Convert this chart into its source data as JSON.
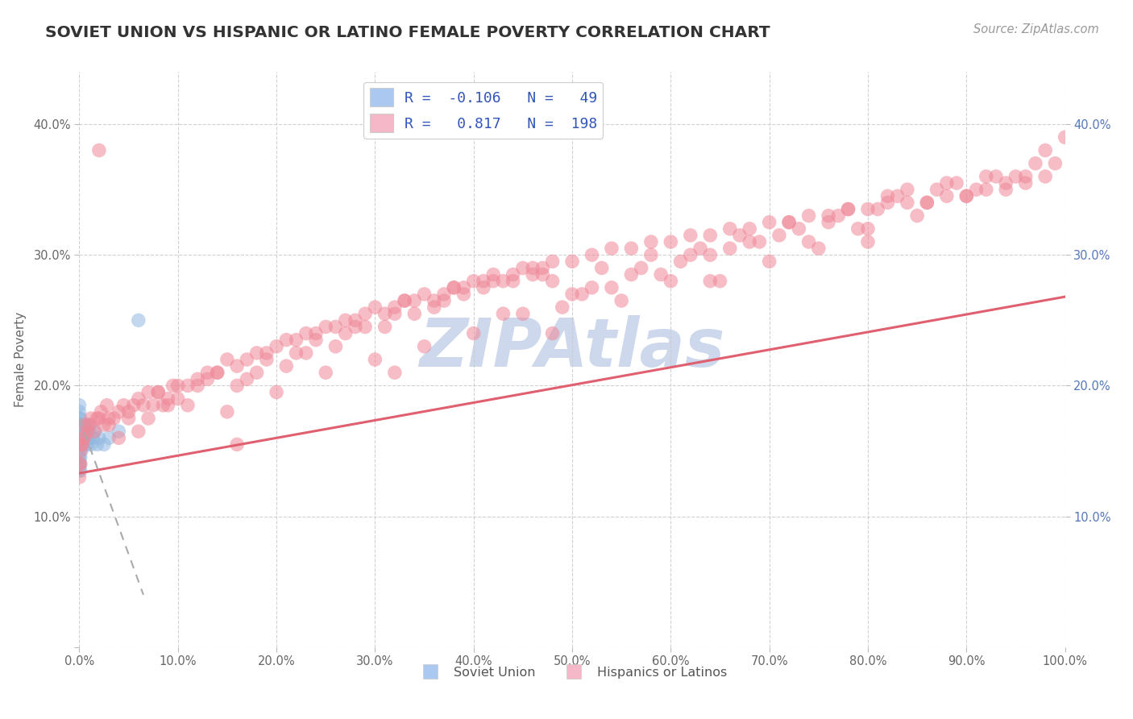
{
  "title": "SOVIET UNION VS HISPANIC OR LATINO FEMALE POVERTY CORRELATION CHART",
  "source": "Source: ZipAtlas.com",
  "ylabel": "Female Poverty",
  "watermark": "ZIPAtlas",
  "legend_entry_blue": "R =  -0.106   N =   49",
  "legend_entry_pink": "R =   0.817   N =  198",
  "blue_scatter_x": [
    0.0,
    0.0,
    0.0,
    0.0,
    0.0,
    0.0,
    0.0,
    0.0,
    0.0,
    0.0,
    0.0,
    0.0,
    0.0,
    0.0,
    0.0,
    0.001,
    0.001,
    0.001,
    0.001,
    0.001,
    0.001,
    0.001,
    0.001,
    0.002,
    0.002,
    0.002,
    0.002,
    0.003,
    0.003,
    0.003,
    0.004,
    0.004,
    0.005,
    0.005,
    0.006,
    0.007,
    0.008,
    0.009,
    0.01,
    0.011,
    0.012,
    0.014,
    0.016,
    0.018,
    0.02,
    0.025,
    0.03,
    0.04,
    0.06
  ],
  "blue_scatter_y": [
    0.155,
    0.16,
    0.165,
    0.17,
    0.175,
    0.18,
    0.185,
    0.145,
    0.14,
    0.135,
    0.15,
    0.16,
    0.17,
    0.155,
    0.165,
    0.155,
    0.16,
    0.165,
    0.17,
    0.175,
    0.145,
    0.14,
    0.135,
    0.16,
    0.155,
    0.165,
    0.15,
    0.155,
    0.16,
    0.165,
    0.17,
    0.155,
    0.16,
    0.165,
    0.17,
    0.165,
    0.155,
    0.16,
    0.165,
    0.17,
    0.155,
    0.16,
    0.165,
    0.155,
    0.16,
    0.155,
    0.16,
    0.165,
    0.25
  ],
  "pink_scatter_x": [
    0.0,
    0.0,
    0.001,
    0.001,
    0.002,
    0.003,
    0.004,
    0.005,
    0.006,
    0.008,
    0.01,
    0.012,
    0.015,
    0.018,
    0.02,
    0.022,
    0.025,
    0.028,
    0.03,
    0.035,
    0.04,
    0.045,
    0.05,
    0.055,
    0.06,
    0.065,
    0.07,
    0.075,
    0.08,
    0.085,
    0.09,
    0.095,
    0.1,
    0.11,
    0.12,
    0.13,
    0.14,
    0.15,
    0.16,
    0.17,
    0.18,
    0.19,
    0.2,
    0.21,
    0.22,
    0.23,
    0.24,
    0.25,
    0.26,
    0.27,
    0.28,
    0.29,
    0.3,
    0.31,
    0.32,
    0.33,
    0.34,
    0.35,
    0.36,
    0.37,
    0.38,
    0.39,
    0.4,
    0.41,
    0.42,
    0.43,
    0.44,
    0.45,
    0.46,
    0.47,
    0.48,
    0.5,
    0.52,
    0.54,
    0.56,
    0.58,
    0.6,
    0.62,
    0.64,
    0.66,
    0.68,
    0.7,
    0.72,
    0.74,
    0.76,
    0.78,
    0.8,
    0.82,
    0.84,
    0.86,
    0.88,
    0.9,
    0.92,
    0.94,
    0.96,
    0.98,
    1.0,
    0.05,
    0.1,
    0.15,
    0.2,
    0.25,
    0.3,
    0.35,
    0.4,
    0.45,
    0.5,
    0.55,
    0.6,
    0.65,
    0.7,
    0.75,
    0.8,
    0.85,
    0.9,
    0.95,
    0.03,
    0.08,
    0.13,
    0.18,
    0.23,
    0.28,
    0.33,
    0.38,
    0.43,
    0.48,
    0.53,
    0.58,
    0.63,
    0.68,
    0.73,
    0.78,
    0.83,
    0.88,
    0.93,
    0.98,
    0.06,
    0.11,
    0.16,
    0.21,
    0.26,
    0.31,
    0.36,
    0.41,
    0.46,
    0.51,
    0.56,
    0.61,
    0.66,
    0.71,
    0.76,
    0.81,
    0.86,
    0.91,
    0.96,
    0.04,
    0.09,
    0.14,
    0.19,
    0.24,
    0.29,
    0.34,
    0.39,
    0.44,
    0.49,
    0.54,
    0.59,
    0.64,
    0.69,
    0.74,
    0.79,
    0.84,
    0.89,
    0.94,
    0.99,
    0.07,
    0.12,
    0.17,
    0.22,
    0.27,
    0.32,
    0.37,
    0.42,
    0.47,
    0.52,
    0.57,
    0.62,
    0.67,
    0.72,
    0.77,
    0.82,
    0.87,
    0.92,
    0.97,
    0.02,
    0.16,
    0.32,
    0.48,
    0.64,
    0.8
  ],
  "pink_scatter_y": [
    0.13,
    0.14,
    0.14,
    0.15,
    0.155,
    0.155,
    0.16,
    0.16,
    0.17,
    0.165,
    0.17,
    0.175,
    0.165,
    0.175,
    0.175,
    0.18,
    0.17,
    0.185,
    0.175,
    0.175,
    0.18,
    0.185,
    0.18,
    0.185,
    0.19,
    0.185,
    0.195,
    0.185,
    0.195,
    0.185,
    0.19,
    0.2,
    0.2,
    0.2,
    0.205,
    0.21,
    0.21,
    0.22,
    0.215,
    0.22,
    0.225,
    0.225,
    0.23,
    0.235,
    0.235,
    0.24,
    0.24,
    0.245,
    0.245,
    0.25,
    0.25,
    0.255,
    0.26,
    0.255,
    0.26,
    0.265,
    0.265,
    0.27,
    0.265,
    0.27,
    0.275,
    0.275,
    0.28,
    0.28,
    0.285,
    0.28,
    0.285,
    0.29,
    0.285,
    0.29,
    0.295,
    0.295,
    0.3,
    0.305,
    0.305,
    0.31,
    0.31,
    0.315,
    0.315,
    0.32,
    0.32,
    0.325,
    0.325,
    0.33,
    0.33,
    0.335,
    0.335,
    0.34,
    0.35,
    0.34,
    0.345,
    0.345,
    0.35,
    0.35,
    0.355,
    0.36,
    0.39,
    0.175,
    0.19,
    0.18,
    0.195,
    0.21,
    0.22,
    0.23,
    0.24,
    0.255,
    0.27,
    0.265,
    0.28,
    0.28,
    0.295,
    0.305,
    0.32,
    0.33,
    0.345,
    0.36,
    0.17,
    0.195,
    0.205,
    0.21,
    0.225,
    0.245,
    0.265,
    0.275,
    0.255,
    0.28,
    0.29,
    0.3,
    0.305,
    0.31,
    0.32,
    0.335,
    0.345,
    0.355,
    0.36,
    0.38,
    0.165,
    0.185,
    0.2,
    0.215,
    0.23,
    0.245,
    0.26,
    0.275,
    0.29,
    0.27,
    0.285,
    0.295,
    0.305,
    0.315,
    0.325,
    0.335,
    0.34,
    0.35,
    0.36,
    0.16,
    0.185,
    0.21,
    0.22,
    0.235,
    0.245,
    0.255,
    0.27,
    0.28,
    0.26,
    0.275,
    0.285,
    0.3,
    0.31,
    0.31,
    0.32,
    0.34,
    0.355,
    0.355,
    0.37,
    0.175,
    0.2,
    0.205,
    0.225,
    0.24,
    0.255,
    0.265,
    0.28,
    0.285,
    0.275,
    0.29,
    0.3,
    0.315,
    0.325,
    0.33,
    0.345,
    0.35,
    0.36,
    0.37,
    0.38,
    0.155,
    0.21,
    0.24,
    0.28,
    0.31
  ],
  "blue_line_x": [
    0.0,
    0.065
  ],
  "blue_line_y": [
    0.175,
    0.04
  ],
  "pink_line_x": [
    0.0,
    1.0
  ],
  "pink_line_y": [
    0.133,
    0.268
  ],
  "xmin": 0.0,
  "xmax": 1.0,
  "ymin": 0.0,
  "ymax": 0.44,
  "xticks": [
    0.0,
    0.1,
    0.2,
    0.3,
    0.4,
    0.5,
    0.6,
    0.7,
    0.8,
    0.9,
    1.0
  ],
  "yticks_left": [
    0.0,
    0.1,
    0.2,
    0.3,
    0.4
  ],
  "ytick_left_labels": [
    "",
    "10.0%",
    "20.0%",
    "30.0%",
    "40.0%"
  ],
  "xtick_labels": [
    "0.0%",
    "10.0%",
    "20.0%",
    "30.0%",
    "40.0%",
    "50.0%",
    "60.0%",
    "70.0%",
    "80.0%",
    "90.0%",
    "100.0%"
  ],
  "yticks_right": [
    0.1,
    0.2,
    0.3,
    0.4
  ],
  "ytick_right_labels": [
    "10.0%",
    "20.0%",
    "30.0%",
    "40.0%"
  ],
  "grid_color": "#cccccc",
  "dot_color_blue": "#92b8e0",
  "dot_color_pink": "#f08898",
  "line_color_blue": "#aaaaaa",
  "line_color_pink": "#e06070",
  "bg_color": "#ffffff",
  "watermark_color": "#cdd8ec",
  "title_color": "#333333",
  "label_color": "#666666",
  "right_tick_color": "#5577bb",
  "legend_patch_blue": "#aac8f0",
  "legend_patch_pink": "#f4b8c8",
  "bottom_legend_label_color": "#555555"
}
